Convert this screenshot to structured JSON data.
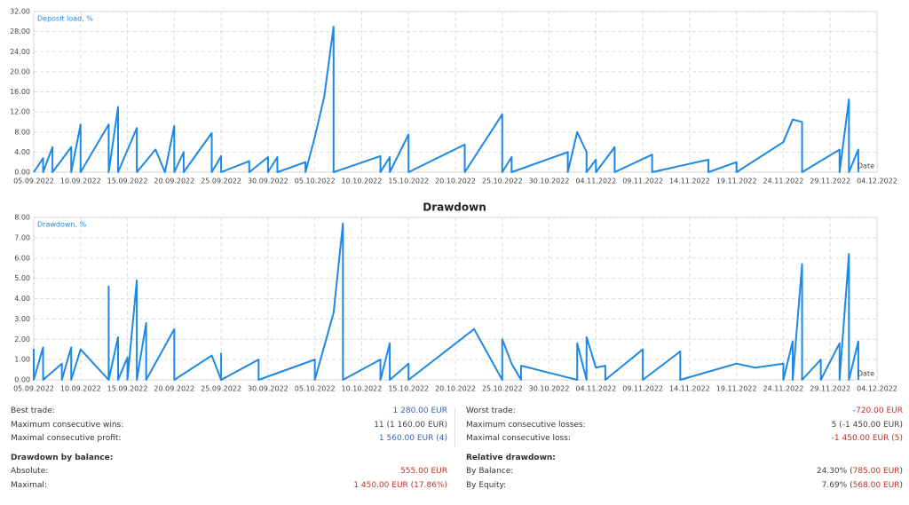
{
  "chart_data": [
    {
      "type": "line",
      "ylabel": "Deposit load, %",
      "xlabel": "Date",
      "color": "#1e88e5",
      "grid": true,
      "xlim": [
        "2022-09-05",
        "2022-12-04"
      ],
      "ylim": [
        0,
        32
      ],
      "yticks": [
        {
          "value": 0,
          "label": "0.00"
        },
        {
          "value": 4,
          "label": "4.00"
        },
        {
          "value": 8,
          "label": "8.00"
        },
        {
          "value": 12,
          "label": "12.00"
        },
        {
          "value": 16,
          "label": "16.00"
        },
        {
          "value": 20,
          "label": "20.00"
        },
        {
          "value": 24,
          "label": "24.00"
        },
        {
          "value": 28,
          "label": "28.00"
        },
        {
          "value": 32,
          "label": "32.00"
        }
      ],
      "xticks": [
        {
          "value": "2022-09-05",
          "label": "05.09.2022"
        },
        {
          "value": "2022-09-10",
          "label": "10.09.2022"
        },
        {
          "value": "2022-09-15",
          "label": "15.09.2022"
        },
        {
          "value": "2022-09-20",
          "label": "20.09.2022"
        },
        {
          "value": "2022-09-25",
          "label": "25.09.2022"
        },
        {
          "value": "2022-09-30",
          "label": "30.09.2022"
        },
        {
          "value": "2022-10-05",
          "label": "05.10.2022"
        },
        {
          "value": "2022-10-10",
          "label": "10.10.2022"
        },
        {
          "value": "2022-10-15",
          "label": "15.10.2022"
        },
        {
          "value": "2022-10-20",
          "label": "20.10.2022"
        },
        {
          "value": "2022-10-25",
          "label": "25.10.2022"
        },
        {
          "value": "2022-10-30",
          "label": "30.10.2022"
        },
        {
          "value": "2022-11-04",
          "label": "04.11.2022"
        },
        {
          "value": "2022-11-09",
          "label": "09.11.2022"
        },
        {
          "value": "2022-11-14",
          "label": "14.11.2022"
        },
        {
          "value": "2022-11-19",
          "label": "19.11.2022"
        },
        {
          "value": "2022-11-24",
          "label": "24.11.2022"
        },
        {
          "value": "2022-11-29",
          "label": "29.11.2022"
        },
        {
          "value": "2022-12-04",
          "label": "04.12.2022"
        }
      ],
      "x": [
        "2022-09-05",
        "2022-09-06",
        "2022-09-06",
        "2022-09-07",
        "2022-09-07",
        "2022-09-09",
        "2022-09-09",
        "2022-09-10",
        "2022-09-10",
        "2022-09-13",
        "2022-09-13",
        "2022-09-14",
        "2022-09-14",
        "2022-09-16",
        "2022-09-16",
        "2022-09-18",
        "2022-09-19",
        "2022-09-20",
        "2022-09-20",
        "2022-09-21",
        "2022-09-21",
        "2022-09-24",
        "2022-09-24",
        "2022-09-25",
        "2022-09-25",
        "2022-09-28",
        "2022-09-28",
        "2022-09-30",
        "2022-09-30",
        "2022-10-01",
        "2022-10-01",
        "2022-10-04",
        "2022-10-04",
        "2022-10-05",
        "2022-10-06",
        "2022-10-07",
        "2022-10-07",
        "2022-10-12",
        "2022-10-12",
        "2022-10-13",
        "2022-10-13",
        "2022-10-15",
        "2022-10-15",
        "2022-10-21",
        "2022-10-21",
        "2022-10-25",
        "2022-10-25",
        "2022-10-26",
        "2022-10-26",
        "2022-11-01",
        "2022-11-01",
        "2022-11-02",
        "2022-11-03",
        "2022-11-03",
        "2022-11-04",
        "2022-11-04",
        "2022-11-06",
        "2022-11-06",
        "2022-11-10",
        "2022-11-10",
        "2022-11-16",
        "2022-11-16",
        "2022-11-19",
        "2022-11-19",
        "2022-11-24",
        "2022-11-25",
        "2022-11-26",
        "2022-11-26",
        "2022-11-30",
        "2022-11-30",
        "2022-12-01",
        "2022-12-01",
        "2022-12-02",
        "2022-12-02"
      ],
      "values": [
        0,
        2.8,
        0,
        5,
        0,
        5,
        0,
        9.5,
        0,
        9.5,
        0,
        13,
        0,
        8.8,
        0,
        4.5,
        0,
        9.2,
        0,
        4,
        0,
        7.8,
        0,
        3.2,
        0,
        2.2,
        0,
        3,
        0,
        3,
        0,
        2,
        0,
        7,
        15,
        29,
        0,
        3.2,
        0,
        3,
        0,
        7.5,
        0,
        5.5,
        0,
        11.5,
        0,
        3,
        0,
        4,
        0,
        8,
        4,
        0,
        2.5,
        0,
        5,
        0,
        3.5,
        0,
        2.5,
        0,
        2,
        0,
        6,
        10.5,
        10,
        0,
        4.5,
        0,
        14.5,
        0,
        4.5,
        0
      ]
    },
    {
      "type": "line",
      "title": "Drawdown",
      "ylabel": "Drawdown, %",
      "xlabel": "Date",
      "color": "#1e88e5",
      "grid": true,
      "xlim": [
        "2022-09-05",
        "2022-12-04"
      ],
      "ylim": [
        0,
        8
      ],
      "yticks": [
        {
          "value": 0,
          "label": "0.00"
        },
        {
          "value": 1,
          "label": "1.00"
        },
        {
          "value": 2,
          "label": "2.00"
        },
        {
          "value": 3,
          "label": "3.00"
        },
        {
          "value": 4,
          "label": "4.00"
        },
        {
          "value": 5,
          "label": "5.00"
        },
        {
          "value": 6,
          "label": "6.00"
        },
        {
          "value": 7,
          "label": "7.00"
        },
        {
          "value": 8,
          "label": "8.00"
        }
      ],
      "xticks": [
        {
          "value": "2022-09-05",
          "label": "05.09.2022"
        },
        {
          "value": "2022-09-10",
          "label": "10.09.2022"
        },
        {
          "value": "2022-09-15",
          "label": "15.09.2022"
        },
        {
          "value": "2022-09-20",
          "label": "20.09.2022"
        },
        {
          "value": "2022-09-25",
          "label": "25.09.2022"
        },
        {
          "value": "2022-09-30",
          "label": "30.09.2022"
        },
        {
          "value": "2022-10-05",
          "label": "05.10.2022"
        },
        {
          "value": "2022-10-10",
          "label": "10.10.2022"
        },
        {
          "value": "2022-10-15",
          "label": "15.10.2022"
        },
        {
          "value": "2022-10-20",
          "label": "20.10.2022"
        },
        {
          "value": "2022-10-25",
          "label": "25.10.2022"
        },
        {
          "value": "2022-10-30",
          "label": "30.10.2022"
        },
        {
          "value": "2022-11-04",
          "label": "04.11.2022"
        },
        {
          "value": "2022-11-09",
          "label": "09.11.2022"
        },
        {
          "value": "2022-11-14",
          "label": "14.11.2022"
        },
        {
          "value": "2022-11-19",
          "label": "19.11.2022"
        },
        {
          "value": "2022-11-24",
          "label": "24.11.2022"
        },
        {
          "value": "2022-11-29",
          "label": "29.11.2022"
        },
        {
          "value": "2022-12-04",
          "label": "04.12.2022"
        }
      ],
      "x": [
        "2022-09-05",
        "2022-09-05",
        "2022-09-05",
        "2022-09-06",
        "2022-09-06",
        "2022-09-08",
        "2022-09-08",
        "2022-09-09",
        "2022-09-09",
        "2022-09-10",
        "2022-09-13",
        "2022-09-13",
        "2022-09-13",
        "2022-09-14",
        "2022-09-14",
        "2022-09-15",
        "2022-09-15",
        "2022-09-16",
        "2022-09-16",
        "2022-09-17",
        "2022-09-17",
        "2022-09-20",
        "2022-09-20",
        "2022-09-24",
        "2022-09-25",
        "2022-09-25",
        "2022-09-25",
        "2022-09-29",
        "2022-09-29",
        "2022-10-05",
        "2022-10-05",
        "2022-10-07",
        "2022-10-08",
        "2022-10-08",
        "2022-10-12",
        "2022-10-12",
        "2022-10-13",
        "2022-10-13",
        "2022-10-15",
        "2022-10-15",
        "2022-10-22",
        "2022-10-25",
        "2022-10-25",
        "2022-10-26",
        "2022-10-27",
        "2022-10-27",
        "2022-11-02",
        "2022-11-02",
        "2022-11-03",
        "2022-11-03",
        "2022-11-04",
        "2022-11-05",
        "2022-11-05",
        "2022-11-09",
        "2022-11-09",
        "2022-11-13",
        "2022-11-13",
        "2022-11-19",
        "2022-11-21",
        "2022-11-24",
        "2022-11-24",
        "2022-11-25",
        "2022-11-25",
        "2022-11-26",
        "2022-11-26",
        "2022-11-28",
        "2022-11-28",
        "2022-11-30",
        "2022-11-30",
        "2022-12-01",
        "2022-12-01",
        "2022-12-02",
        "2022-12-02"
      ],
      "values": [
        0,
        1.5,
        0,
        1.6,
        0,
        0.8,
        0,
        1.6,
        0,
        1.5,
        0,
        4.6,
        0,
        2.1,
        0,
        1.1,
        0,
        4.9,
        0,
        2.8,
        0,
        2.5,
        0,
        1.2,
        0,
        1.3,
        0,
        1,
        0,
        1,
        0,
        3.3,
        7.7,
        0,
        1,
        0,
        1.8,
        0,
        0.8,
        0,
        2.5,
        0,
        2,
        0.8,
        0,
        0.7,
        0,
        1.8,
        0,
        2.1,
        0.6,
        0.7,
        0,
        1.5,
        0,
        1.4,
        0,
        0.8,
        0.6,
        0.8,
        0,
        1.9,
        0,
        5.7,
        0,
        1,
        0,
        1.8,
        0,
        6.2,
        0,
        1.9,
        0
      ]
    }
  ],
  "stats": {
    "left": [
      {
        "label": "Best trade:",
        "value": [
          "1 280.00 EUR"
        ],
        "tone": [
          "blue"
        ]
      },
      {
        "label": "Maximum consecutive wins:",
        "value": [
          "11 (1 160.00 EUR)"
        ],
        "tone": [
          "gray"
        ]
      },
      {
        "label": "Maximal consecutive profit:",
        "value": [
          "1 560.00 EUR (4)"
        ],
        "tone": [
          "blue"
        ]
      },
      {
        "heading": "Drawdown by balance:"
      },
      {
        "label": "Absolute:",
        "value": [
          "555.00 EUR"
        ],
        "tone": [
          "red"
        ]
      },
      {
        "label": "Maximal:",
        "value": [
          "1 450.00 EUR (17.86%)"
        ],
        "tone": [
          "red"
        ]
      }
    ],
    "right": [
      {
        "label": "Worst trade:",
        "value": [
          "-720.00 EUR"
        ],
        "tone": [
          "red"
        ]
      },
      {
        "label": "Maximum consecutive losses:",
        "value": [
          "5 (-1 450.00 EUR)"
        ],
        "tone": [
          "gray"
        ]
      },
      {
        "label": "Maximal consecutive loss:",
        "value": [
          "-1 450.00 EUR (5)"
        ],
        "tone": [
          "red"
        ]
      },
      {
        "heading": "Relative drawdown:"
      },
      {
        "label": "By Balance:",
        "value": [
          "24.30% (",
          "785.00 EUR",
          ")"
        ],
        "tone": [
          "gray",
          "red",
          "gray"
        ]
      },
      {
        "label": "By Equity:",
        "value": [
          "7.69% (",
          "568.00 EUR",
          ")"
        ],
        "tone": [
          "gray",
          "red",
          "gray"
        ]
      }
    ]
  }
}
